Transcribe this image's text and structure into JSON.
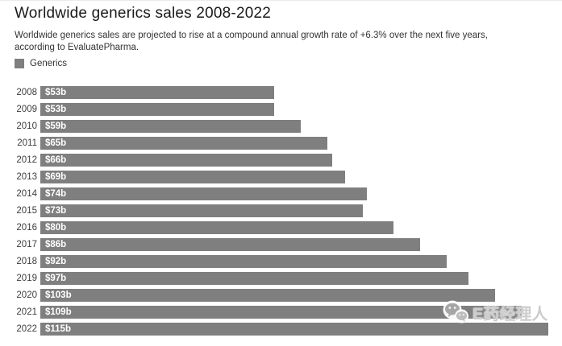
{
  "header": {
    "title": "Worldwide generics sales 2008-2022",
    "subtitle": "Worldwide generics sales are projected to rise at a compound annual growth rate of +6.3% over the next five years, according to EvaluatePharma."
  },
  "legend": {
    "label": "Generics",
    "swatch_color": "#7f7f7f"
  },
  "chart_data": {
    "type": "bar",
    "orientation": "horizontal",
    "title": "Worldwide generics sales 2008-2022",
    "series_name": "Generics",
    "categories": [
      "2008",
      "2009",
      "2010",
      "2011",
      "2012",
      "2013",
      "2014",
      "2015",
      "2016",
      "2017",
      "2018",
      "2019",
      "2020",
      "2021",
      "2022"
    ],
    "values": [
      53,
      53,
      59,
      65,
      66,
      69,
      74,
      73,
      80,
      86,
      92,
      97,
      103,
      109,
      115
    ],
    "bar_labels": [
      "$53b",
      "$53b",
      "$59b",
      "$65b",
      "$66b",
      "$69b",
      "$74b",
      "$73b",
      "$80b",
      "$86b",
      "$92b",
      "$97b",
      "$103b",
      "$109b",
      "$115b"
    ],
    "unit": "billion USD",
    "xlim": [
      0,
      115
    ],
    "grid": false,
    "legend_position": "top-left",
    "bar_color": "#7f7f7f",
    "bar_label_color": "#ffffff"
  },
  "watermark": {
    "text": "E药经理人",
    "icon": "wechat-icon"
  }
}
